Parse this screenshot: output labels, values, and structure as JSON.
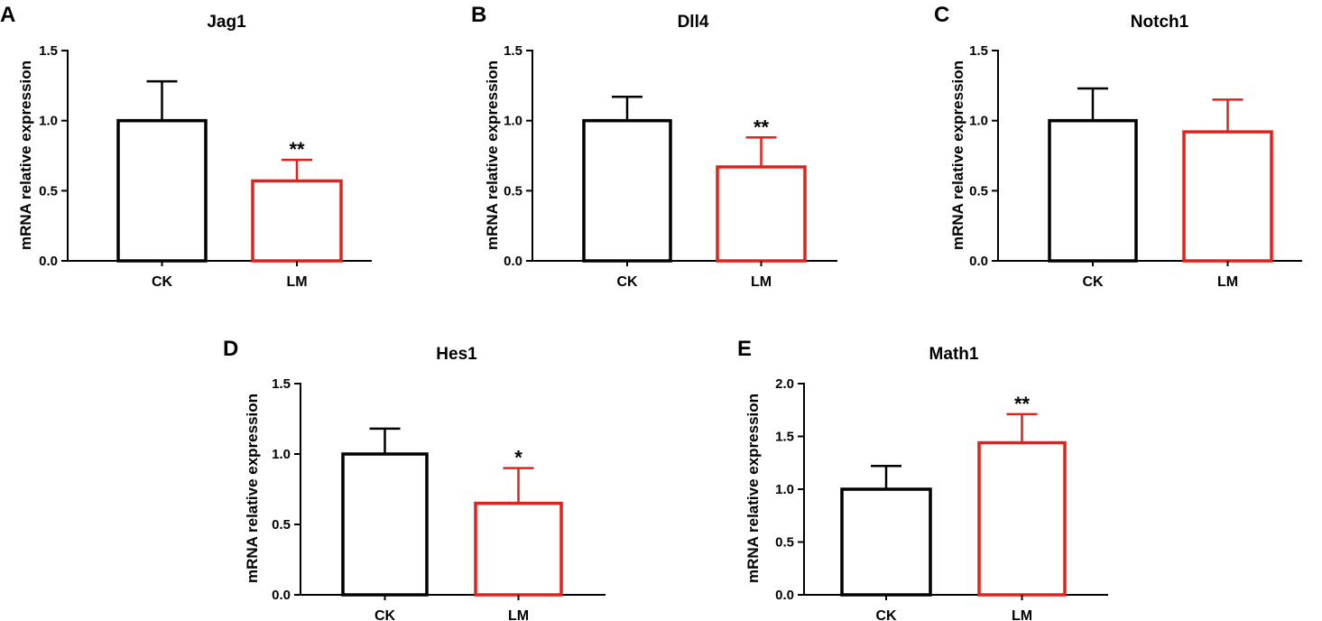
{
  "chart_data": [
    {
      "panel": "A",
      "type": "bar",
      "title": "Jag1",
      "xlabel": "",
      "ylabel": "mRNA relative expression",
      "categories": [
        "CK",
        "LM"
      ],
      "values": [
        1.0,
        0.57
      ],
      "error_upper": [
        0.28,
        0.15
      ],
      "significance": [
        "",
        "**"
      ],
      "ylim": [
        0,
        1.5
      ],
      "yticks": [
        0.0,
        0.5,
        1.0,
        1.5
      ],
      "ytick_labels": [
        "0.0",
        "0.5",
        "1.0",
        "1.5"
      ],
      "colors": [
        "#000000",
        "#e3211c"
      ]
    },
    {
      "panel": "B",
      "type": "bar",
      "title": "Dll4",
      "xlabel": "",
      "ylabel": "mRNA relative expression",
      "categories": [
        "CK",
        "LM"
      ],
      "values": [
        1.0,
        0.67
      ],
      "error_upper": [
        0.17,
        0.21
      ],
      "significance": [
        "",
        "**"
      ],
      "ylim": [
        0,
        1.5
      ],
      "yticks": [
        0.0,
        0.5,
        1.0,
        1.5
      ],
      "ytick_labels": [
        "0.0",
        "0.5",
        "1.0",
        "1.5"
      ],
      "colors": [
        "#000000",
        "#e3211c"
      ]
    },
    {
      "panel": "C",
      "type": "bar",
      "title": "Notch1",
      "xlabel": "",
      "ylabel": "mRNA relative expression",
      "categories": [
        "CK",
        "LM"
      ],
      "values": [
        1.0,
        0.92
      ],
      "error_upper": [
        0.23,
        0.23
      ],
      "significance": [
        "",
        ""
      ],
      "ylim": [
        0,
        1.5
      ],
      "yticks": [
        0.0,
        0.5,
        1.0,
        1.5
      ],
      "ytick_labels": [
        "0.0",
        "0.5",
        "1.0",
        "1.5"
      ],
      "colors": [
        "#000000",
        "#e3211c"
      ]
    },
    {
      "panel": "D",
      "type": "bar",
      "title": "Hes1",
      "xlabel": "",
      "ylabel": "mRNA relative expression",
      "categories": [
        "CK",
        "LM"
      ],
      "values": [
        1.0,
        0.65
      ],
      "error_upper": [
        0.18,
        0.25
      ],
      "significance": [
        "",
        "*"
      ],
      "ylim": [
        0,
        1.5
      ],
      "yticks": [
        0.0,
        0.5,
        1.0,
        1.5
      ],
      "ytick_labels": [
        "0.0",
        "0.5",
        "1.0",
        "1.5"
      ],
      "colors": [
        "#000000",
        "#e3211c"
      ]
    },
    {
      "panel": "E",
      "type": "bar",
      "title": "Math1",
      "xlabel": "",
      "ylabel": "mRNA relative expression",
      "categories": [
        "CK",
        "LM"
      ],
      "values": [
        1.0,
        1.44
      ],
      "error_upper": [
        0.22,
        0.27
      ],
      "significance": [
        "",
        "**"
      ],
      "ylim": [
        0,
        2.0
      ],
      "yticks": [
        0.0,
        0.5,
        1.0,
        1.5,
        2.0
      ],
      "ytick_labels": [
        "0.0",
        "0.5",
        "1.0",
        "1.5",
        "2.0"
      ],
      "colors": [
        "#000000",
        "#e3211c"
      ]
    }
  ]
}
